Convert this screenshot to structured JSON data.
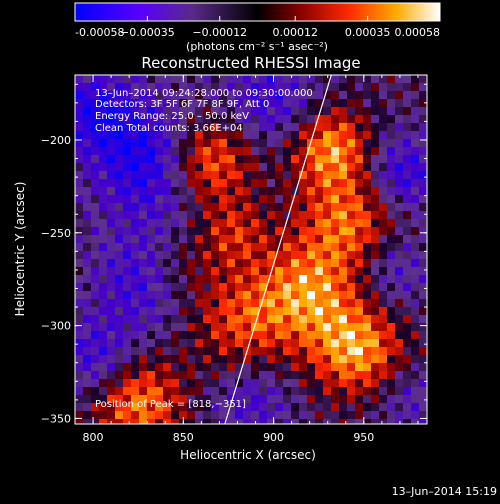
{
  "chart_data": {
    "type": "heatmap",
    "title": "Reconstructed RHESSI Image",
    "xlabel": "Heliocentric X (arcsec)",
    "ylabel": "Heliocentric Y (arcsec)",
    "xlim": [
      790,
      985
    ],
    "ylim": [
      -353,
      -165
    ],
    "x_ticks": [
      800,
      850,
      900,
      950
    ],
    "y_ticks": [
      -200,
      -250,
      -300,
      -350
    ],
    "colorbar": {
      "range": [
        -0.00058,
        0.00058
      ],
      "tick_values": [
        -0.00058,
        -0.00035,
        -0.00012,
        0.00012,
        0.00035,
        0.00058
      ],
      "tick_labels": [
        "-0.00058",
        "−0.00035",
        "−0.00012",
        "0.00012",
        "0.00035",
        "0.00058"
      ],
      "unit_label": "(photons cm⁻² s⁻¹ asec⁻²)"
    },
    "annotations": {
      "time_range": "13–Jun–2014 09:24:28.000 to 09:30:00.000",
      "detectors": "Detectors: 3F 5F 6F 7F 8F 9F, Att 0",
      "energy": "Energy Range: 25.0 – 50.0 keV",
      "clean": "Clean     Total counts: 3.66E+04",
      "peak": "Position of Peak = [818,−351]"
    },
    "limb_line": {
      "x": [
        873,
        932
      ],
      "y": [
        -353,
        -165
      ]
    },
    "footer": "13–Jun–2014 15:19"
  },
  "colors": {
    "background": "#000000",
    "axes": "#ffffff",
    "colormap_low": "#0000ff",
    "colormap_mid": "#000000",
    "colormap_high": "#ffffff"
  }
}
